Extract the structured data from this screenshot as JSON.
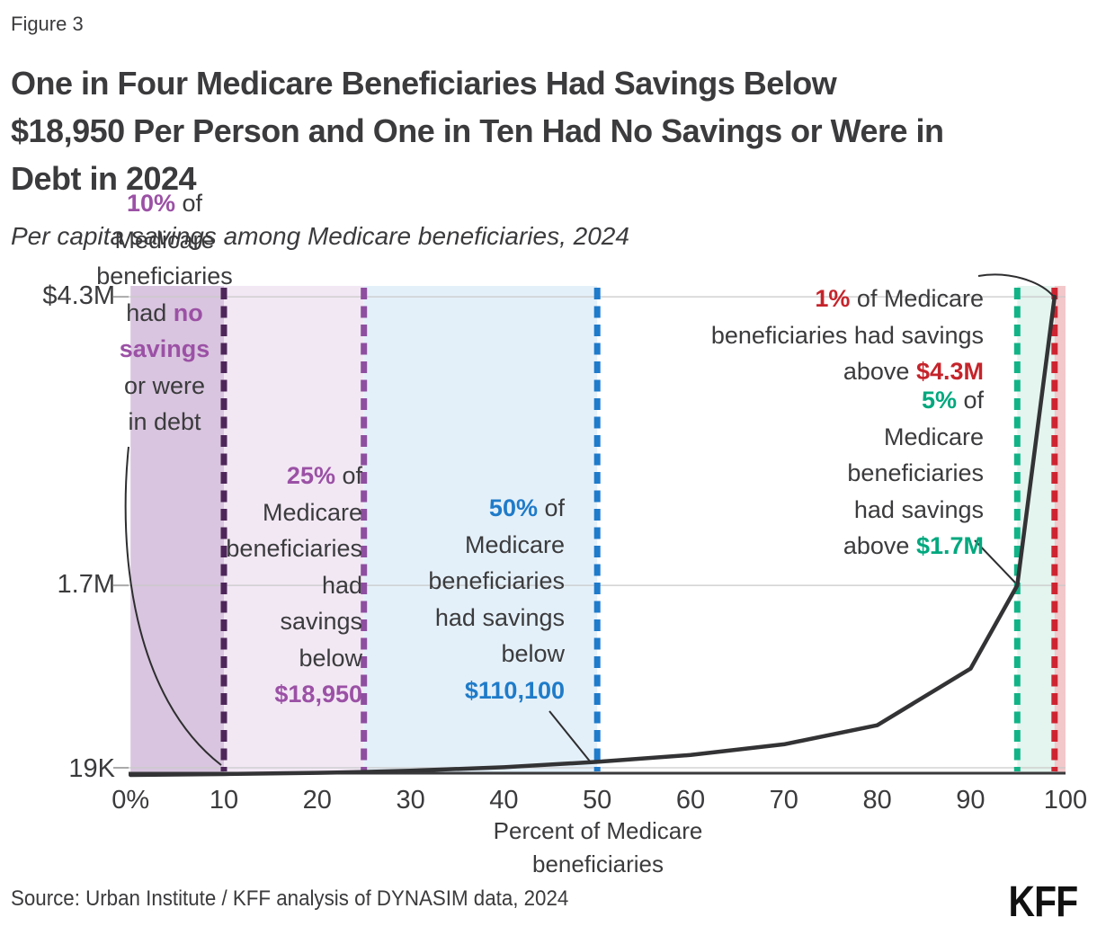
{
  "figure_label": "Figure 3",
  "title_lines": [
    "One in Four Medicare Beneficiaries Had Savings Below",
    "$18,950 Per Person and One in Ten Had No Savings or Were in",
    "Debt in 2024"
  ],
  "subtitle": "Per capita savings among Medicare beneficiaries, 2024",
  "source": "Source: Urban Institute / KFF analysis of DYNASIM data, 2024",
  "logo": "KFF",
  "colors": {
    "text": "#3B3B3D",
    "purple": "#9B51A5",
    "blue": "#1F7BC9",
    "teal": "#00A87E",
    "red": "#C5242B",
    "grid": "#C9C9C9",
    "axis": "#3A3A3C",
    "line": "#333335",
    "callout": "#2E2E30",
    "fill_purple": "#D9C5DF",
    "fill_lavender": "#F2E8F4",
    "fill_blue": "#E4F0F9",
    "fill_teal": "#E4F4EE",
    "fill_red": "#F2C8CB",
    "dash_purple_dark": "#4E275A",
    "dash_purple": "#8E4FA0",
    "dash_blue": "#1F7BCB",
    "dash_teal": "#12B487",
    "dash_red": "#CE2431"
  },
  "chart_data": {
    "type": "line",
    "title": "Per capita savings among Medicare beneficiaries, 2024",
    "xlabel": "Percent of Medicare beneficiaries",
    "ylabel": "Per capita savings",
    "xlim": [
      0,
      100
    ],
    "ylim": [
      0,
      4345000
    ],
    "grid": true,
    "x_ticks": [
      {
        "pct": 0,
        "label": "0%"
      },
      {
        "pct": 10,
        "label": "10"
      },
      {
        "pct": 20,
        "label": "20"
      },
      {
        "pct": 30,
        "label": "30"
      },
      {
        "pct": 40,
        "label": "40"
      },
      {
        "pct": 50,
        "label": "50"
      },
      {
        "pct": 60,
        "label": "60"
      },
      {
        "pct": 70,
        "label": "70"
      },
      {
        "pct": 80,
        "label": "80"
      },
      {
        "pct": 90,
        "label": "90"
      },
      {
        "pct": 100,
        "label": "100"
      }
    ],
    "y_ticks": [
      {
        "value": 4300000,
        "label": "$4.3M"
      },
      {
        "value": 1700000,
        "label": "1.7M"
      },
      {
        "value": 19000,
        "label": "19K"
      }
    ],
    "key_percentiles": {
      "p10": 0,
      "p25": 18950,
      "p50": 110100,
      "p95": 1700000,
      "p99": 4300000
    },
    "points": [
      [
        0,
        -20000
      ],
      [
        10,
        0
      ],
      [
        20,
        11000
      ],
      [
        25,
        18950
      ],
      [
        30,
        30000
      ],
      [
        40,
        62000
      ],
      [
        50,
        110100
      ],
      [
        60,
        172000
      ],
      [
        70,
        268000
      ],
      [
        80,
        440000
      ],
      [
        90,
        950000
      ],
      [
        95,
        1700000
      ],
      [
        99,
        4300000
      ]
    ],
    "regions": [
      {
        "from": 0,
        "to": 10,
        "color_key": "fill_purple"
      },
      {
        "from": 10,
        "to": 25,
        "color_key": "fill_lavender"
      },
      {
        "from": 25,
        "to": 50,
        "color_key": "fill_blue"
      },
      {
        "from": 95,
        "to": 100,
        "color_key": "fill_teal"
      },
      {
        "from": 99,
        "to": 100,
        "color_key": "fill_red"
      }
    ],
    "vlines": [
      {
        "pct": 10,
        "color_key": "dash_purple_dark"
      },
      {
        "pct": 25,
        "color_key": "dash_purple"
      },
      {
        "pct": 50,
        "color_key": "dash_blue"
      },
      {
        "pct": 95,
        "color_key": "dash_teal"
      },
      {
        "pct": 99,
        "color_key": "dash_red"
      }
    ]
  },
  "axis_title_lines": [
    "Percent of Medicare",
    "beneficiaries"
  ],
  "annotations": [
    {
      "id": "note-10",
      "lines": [
        [
          {
            "t": "10%",
            "accent": "purple"
          },
          {
            "t": " of"
          }
        ],
        [
          {
            "t": "Medicare"
          }
        ],
        [
          {
            "t": "beneficiaries"
          }
        ],
        [
          {
            "t": "had "
          },
          {
            "t": "no",
            "accent": "purple"
          }
        ],
        [
          {
            "t": "savings",
            "accent": "purple"
          }
        ],
        [
          {
            "t": "or were"
          }
        ],
        [
          {
            "t": "in debt"
          }
        ]
      ]
    },
    {
      "id": "note-25",
      "lines": [
        [
          {
            "t": "25%",
            "accent": "purple"
          },
          {
            "t": " of"
          }
        ],
        [
          {
            "t": "Medicare"
          }
        ],
        [
          {
            "t": "beneficiaries"
          }
        ],
        [
          {
            "t": "had"
          }
        ],
        [
          {
            "t": "savings"
          }
        ],
        [
          {
            "t": "below"
          }
        ],
        [
          {
            "t": "$18,950",
            "accent": "purple"
          }
        ]
      ]
    },
    {
      "id": "note-50",
      "lines": [
        [
          {
            "t": "50%",
            "accent": "blue"
          },
          {
            "t": " of"
          }
        ],
        [
          {
            "t": "Medicare"
          }
        ],
        [
          {
            "t": "beneficiaries"
          }
        ],
        [
          {
            "t": "had savings"
          }
        ],
        [
          {
            "t": "below"
          }
        ],
        [
          {
            "t": "$110,100",
            "accent": "blue"
          }
        ]
      ]
    },
    {
      "id": "note-1",
      "lines": [
        [
          {
            "t": "1%",
            "accent": "red"
          },
          {
            "t": " of Medicare"
          }
        ],
        [
          {
            "t": "beneficiaries had savings"
          }
        ],
        [
          {
            "t": "above "
          },
          {
            "t": "$4.3M",
            "accent": "red"
          }
        ]
      ]
    },
    {
      "id": "note-5",
      "lines": [
        [
          {
            "t": "5%",
            "accent": "teal"
          },
          {
            "t": " of"
          }
        ],
        [
          {
            "t": "Medicare"
          }
        ],
        [
          {
            "t": "beneficiaries"
          }
        ],
        [
          {
            "t": "had savings"
          }
        ],
        [
          {
            "t": "above "
          },
          {
            "t": "$1.7M",
            "accent": "teal"
          }
        ]
      ]
    }
  ]
}
